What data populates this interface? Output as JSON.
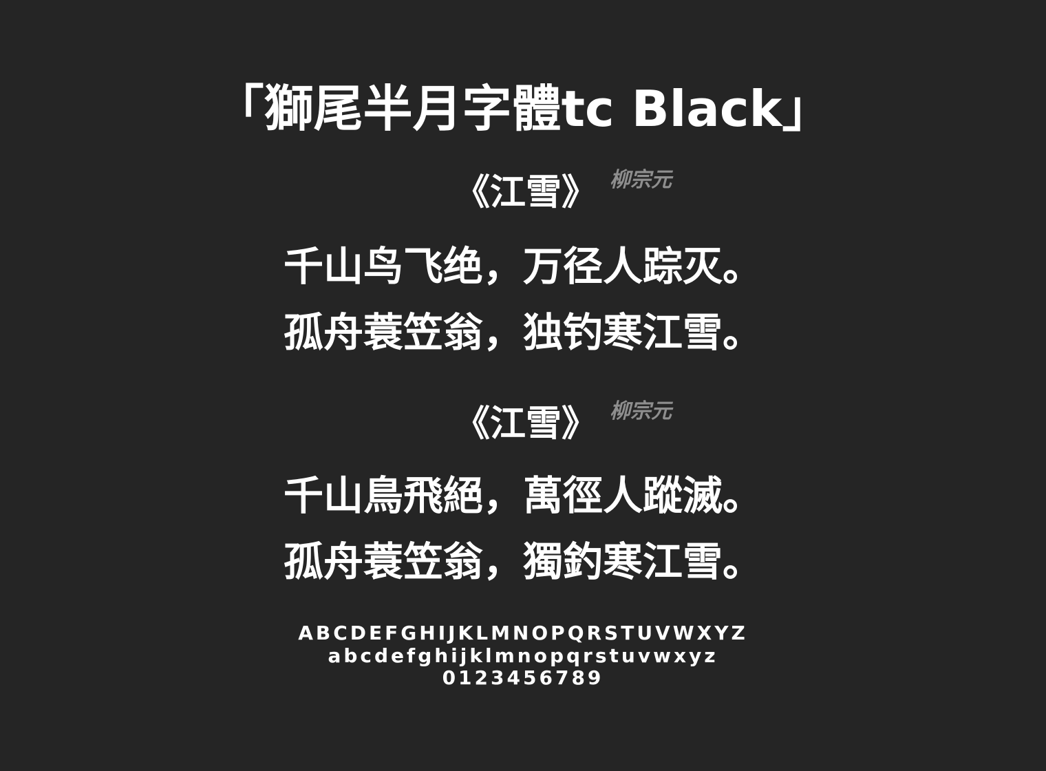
{
  "title": "「獅尾半月字體tc Black」",
  "poem_simplified": {
    "title": "《江雪》",
    "author": "柳宗元",
    "line1": "千山鸟飞绝，万径人踪灭。",
    "line2": "孤舟蓑笠翁，独钓寒江雪。"
  },
  "poem_traditional": {
    "title": "《江雪》",
    "author": "柳宗元",
    "line1": "千山鳥飛絕，萬徑人蹤滅。",
    "line2": "孤舟蓑笠翁，獨釣寒江雪。"
  },
  "alphabet": {
    "uppercase": "ABCDEFGHIJKLMNOPQRSTUVWXYZ",
    "lowercase": "abcdefghijklmnopqrstuvwxyz",
    "digits": "0123456789"
  },
  "colors": {
    "background": "#252525",
    "text": "#ffffff",
    "author": "#8e8e8e"
  }
}
